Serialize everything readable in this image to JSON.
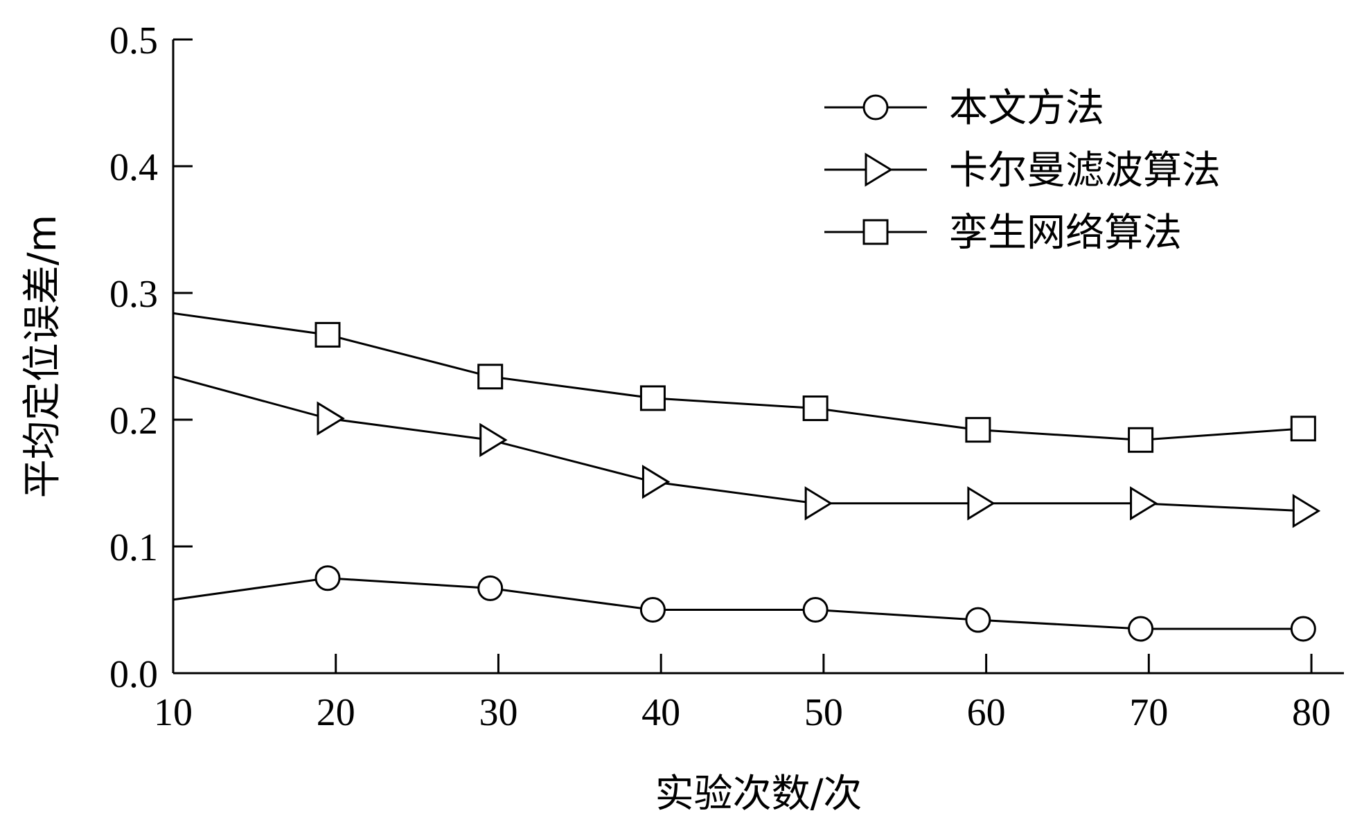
{
  "chart_data": {
    "type": "line",
    "title": "",
    "xlabel": "实验次数/次",
    "ylabel": "平均定位误差/m",
    "xlim": [
      10,
      82
    ],
    "ylim": [
      0.0,
      0.5
    ],
    "x_ticks": [
      10,
      20,
      30,
      40,
      50,
      60,
      70,
      80
    ],
    "y_ticks": [
      0.0,
      0.1,
      0.2,
      0.3,
      0.4,
      0.5
    ],
    "x_tick_labels": [
      "10",
      "20",
      "30",
      "40",
      "50",
      "60",
      "70",
      "80"
    ],
    "y_tick_labels": [
      "0.0",
      "0.1",
      "0.2",
      "0.3",
      "0.4",
      "0.5"
    ],
    "grid": false,
    "legend_position": "top-right",
    "series": [
      {
        "name": "本文方法",
        "marker": "circle",
        "line_start": [
          10,
          0.058
        ],
        "x": [
          19.5,
          29.5,
          39.5,
          49.5,
          59.5,
          69.5,
          79.5
        ],
        "values": [
          0.075,
          0.067,
          0.05,
          0.05,
          0.042,
          0.035,
          0.035
        ]
      },
      {
        "name": "卡尔曼滤波算法",
        "marker": "triangle-right",
        "line_start": [
          10,
          0.234
        ],
        "x": [
          19.5,
          29.5,
          39.5,
          49.5,
          59.5,
          69.5,
          79.5
        ],
        "values": [
          0.201,
          0.184,
          0.151,
          0.134,
          0.134,
          0.134,
          0.128
        ]
      },
      {
        "name": "孪生网络算法",
        "marker": "square",
        "line_start": [
          10,
          0.284
        ],
        "x": [
          19.5,
          29.5,
          39.5,
          49.5,
          59.5,
          69.5,
          79.5
        ],
        "values": [
          0.267,
          0.234,
          0.217,
          0.209,
          0.192,
          0.184,
          0.193
        ]
      }
    ],
    "colors": {
      "line": "#000000",
      "marker_fill": "#ffffff",
      "background": "#ffffff"
    }
  }
}
